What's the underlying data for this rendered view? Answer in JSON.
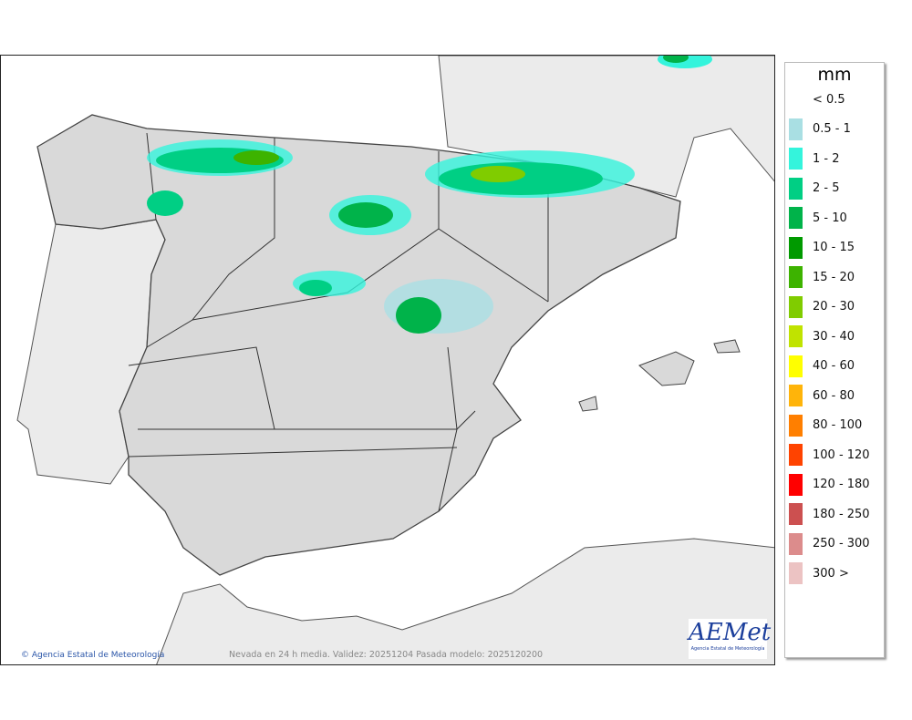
{
  "map": {
    "credit": "Agencia Estatal de Meteorología",
    "caption": "Nevada en 24 h media. Validez: 20251204 Pasada modelo: 2025120200",
    "logo_text": "AEMet",
    "logo_subtitle": "Agencia Estatal de Meteorología",
    "colors": {
      "sea": "#ffffff",
      "land": "#ebebeb",
      "spain": "#d9d9d9"
    }
  },
  "legend": {
    "unit": "mm",
    "items": [
      {
        "label": "< 0.5",
        "color": ""
      },
      {
        "label": "0.5 - 1",
        "color": "#a9dfe3"
      },
      {
        "label": "1 - 2",
        "color": "#34f4dc"
      },
      {
        "label": "2 - 5",
        "color": "#00cf84"
      },
      {
        "label": "5 - 10",
        "color": "#00b34a"
      },
      {
        "label": "10 - 15",
        "color": "#009a00"
      },
      {
        "label": "15 - 20",
        "color": "#3db300"
      },
      {
        "label": "20 - 30",
        "color": "#80cc00"
      },
      {
        "label": "30 - 40",
        "color": "#c0e300"
      },
      {
        "label": "40 - 60",
        "color": "#ffff00"
      },
      {
        "label": "60 - 80",
        "color": "#ffb40a"
      },
      {
        "label": "80 - 100",
        "color": "#ff7f00"
      },
      {
        "label": "100 - 120",
        "color": "#ff4300"
      },
      {
        "label": "120 - 180",
        "color": "#ff0000"
      },
      {
        "label": "180 - 250",
        "color": "#cc5050"
      },
      {
        "label": "250 - 300",
        "color": "#dc8c8c"
      },
      {
        "label": "300 >",
        "color": "#ecc3c3"
      }
    ]
  }
}
